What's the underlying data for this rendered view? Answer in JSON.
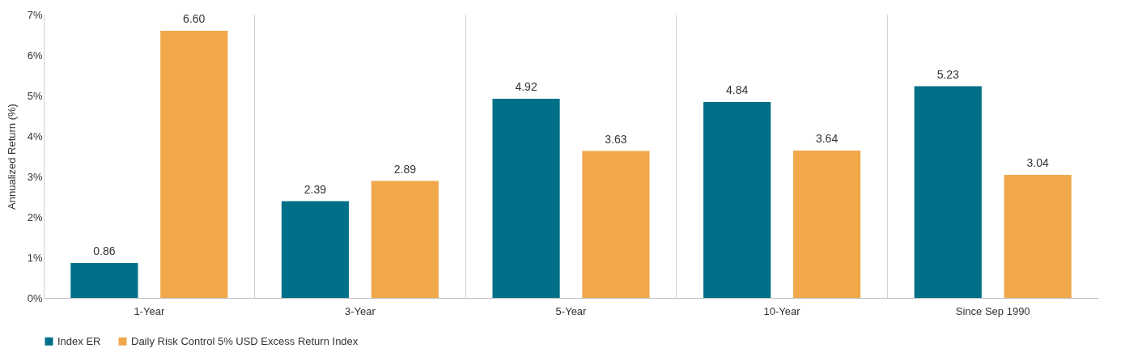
{
  "chart_data": {
    "type": "bar",
    "ylabel": "Annualized Return (%)",
    "categories": [
      "1-Year",
      "3-Year",
      "5-Year",
      "10-Year",
      "Since Sep 1990"
    ],
    "series": [
      {
        "name": "Index ER",
        "color": "#006f88",
        "values": [
          0.86,
          2.39,
          4.92,
          4.84,
          5.23
        ],
        "value_labels": [
          "0.86",
          "2.39",
          "4.92",
          "4.84",
          "5.23"
        ]
      },
      {
        "name": "Daily Risk Control 5% USD Excess Return Index",
        "color": "#f0a84b",
        "values": [
          6.6,
          2.89,
          3.63,
          3.64,
          3.04
        ],
        "value_labels": [
          "6.60",
          "2.89",
          "3.63",
          "3.64",
          "3.04"
        ]
      }
    ],
    "ylim": [
      0,
      7
    ],
    "yticks": [
      {
        "value": 0,
        "label": "0%"
      },
      {
        "value": 1,
        "label": "1%"
      },
      {
        "value": 2,
        "label": "2%"
      },
      {
        "value": 3,
        "label": "3%"
      },
      {
        "value": 4,
        "label": "4%"
      },
      {
        "value": 5,
        "label": "5%"
      },
      {
        "value": 6,
        "label": "6%"
      },
      {
        "value": 7,
        "label": "7%"
      }
    ],
    "grid": "x",
    "legend": "bottom"
  }
}
